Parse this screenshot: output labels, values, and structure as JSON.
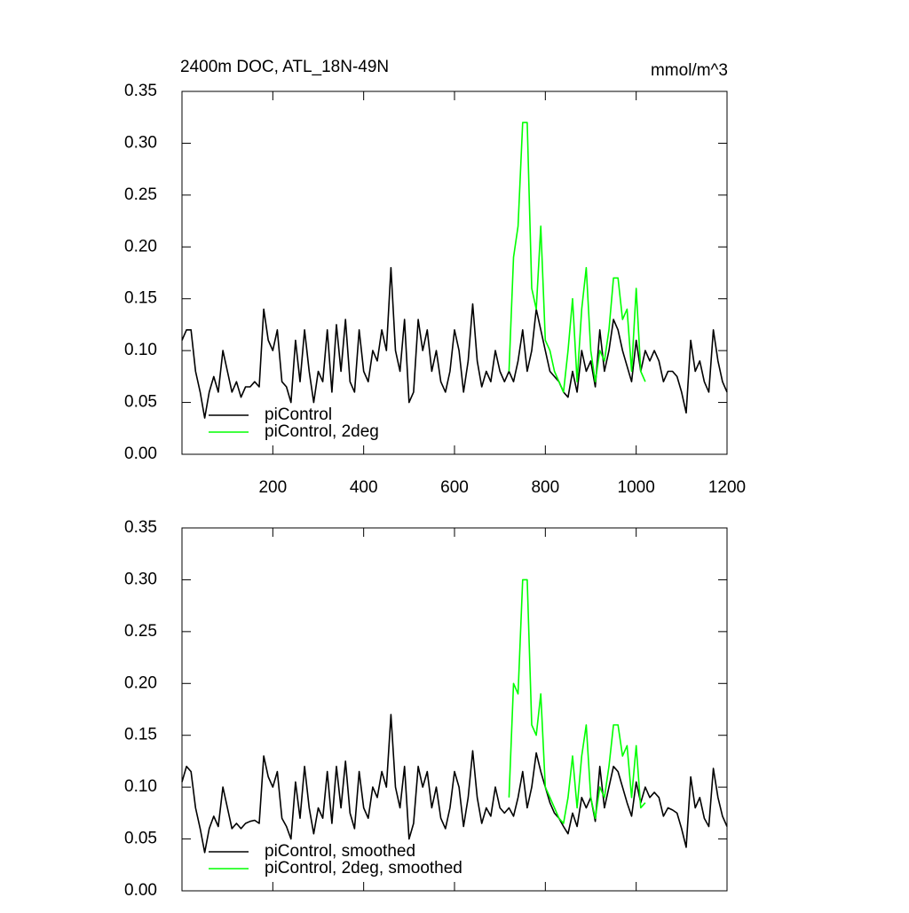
{
  "chart_data": [
    {
      "type": "line",
      "title": "2400m DOC, ATL_18N-49N",
      "units": "mmol/m^3",
      "xlim": [
        0,
        1200
      ],
      "xticks": [
        200,
        400,
        600,
        800,
        1000,
        1200
      ],
      "ylim": [
        0,
        0.35
      ],
      "yticks": [
        {
          "value": 0,
          "label": "0.00"
        },
        {
          "value": 0.05,
          "label": "0.05"
        },
        {
          "value": 0.1,
          "label": "0.10"
        },
        {
          "value": 0.15,
          "label": "0.15"
        },
        {
          "value": 0.2,
          "label": "0.20"
        },
        {
          "value": 0.25,
          "label": "0.25"
        },
        {
          "value": 0.3,
          "label": "0.30"
        },
        {
          "value": 0.35,
          "label": "0.35"
        }
      ],
      "legend": "lower left",
      "series": [
        {
          "name": "piControl",
          "color": "#000000",
          "x": [
            0,
            10,
            20,
            30,
            40,
            50,
            60,
            70,
            80,
            90,
            100,
            110,
            120,
            130,
            140,
            150,
            160,
            170,
            180,
            190,
            200,
            210,
            220,
            230,
            240,
            250,
            260,
            270,
            280,
            290,
            300,
            310,
            320,
            330,
            340,
            350,
            360,
            370,
            380,
            390,
            400,
            410,
            420,
            430,
            440,
            450,
            460,
            470,
            480,
            490,
            500,
            510,
            520,
            530,
            540,
            550,
            560,
            570,
            580,
            590,
            600,
            610,
            620,
            630,
            640,
            650,
            660,
            670,
            680,
            690,
            700,
            710,
            720,
            730,
            740,
            750,
            760,
            770,
            780,
            790,
            800,
            810,
            820,
            830,
            840,
            850,
            860,
            870,
            880,
            890,
            900,
            910,
            920,
            930,
            940,
            950,
            960,
            970,
            980,
            990,
            1000,
            1010,
            1020,
            1030,
            1040,
            1050,
            1060,
            1070,
            1080,
            1090,
            1100,
            1110,
            1120,
            1130,
            1140,
            1150,
            1160,
            1170,
            1180,
            1190,
            1200
          ],
          "values": [
            0.11,
            0.12,
            0.12,
            0.08,
            0.06,
            0.035,
            0.06,
            0.075,
            0.06,
            0.1,
            0.08,
            0.06,
            0.07,
            0.055,
            0.065,
            0.065,
            0.07,
            0.065,
            0.14,
            0.11,
            0.1,
            0.12,
            0.07,
            0.065,
            0.05,
            0.11,
            0.07,
            0.12,
            0.08,
            0.05,
            0.08,
            0.07,
            0.12,
            0.06,
            0.125,
            0.08,
            0.13,
            0.07,
            0.06,
            0.12,
            0.08,
            0.07,
            0.1,
            0.09,
            0.12,
            0.1,
            0.18,
            0.1,
            0.08,
            0.13,
            0.05,
            0.06,
            0.13,
            0.1,
            0.12,
            0.08,
            0.1,
            0.07,
            0.06,
            0.08,
            0.12,
            0.1,
            0.06,
            0.09,
            0.145,
            0.09,
            0.065,
            0.08,
            0.07,
            0.1,
            0.08,
            0.07,
            0.08,
            0.07,
            0.09,
            0.12,
            0.08,
            0.1,
            0.14,
            0.12,
            0.1,
            0.08,
            0.075,
            0.07,
            0.06,
            0.055,
            0.08,
            0.06,
            0.1,
            0.08,
            0.09,
            0.065,
            0.12,
            0.08,
            0.1,
            0.13,
            0.12,
            0.1,
            0.085,
            0.07,
            0.11,
            0.08,
            0.1,
            0.09,
            0.1,
            0.09,
            0.07,
            0.08,
            0.08,
            0.075,
            0.06,
            0.04,
            0.11,
            0.08,
            0.09,
            0.07,
            0.06,
            0.12,
            0.09,
            0.07,
            0.06
          ]
        },
        {
          "name": "piControl, 2deg",
          "color": "#00ff00",
          "x": [
            720,
            730,
            740,
            750,
            760,
            770,
            780,
            790,
            800,
            810,
            820,
            830,
            840,
            850,
            860,
            870,
            880,
            890,
            900,
            910,
            920,
            930,
            940,
            950,
            960,
            970,
            980,
            990,
            1000,
            1010,
            1020
          ],
          "values": [
            0.08,
            0.19,
            0.22,
            0.32,
            0.32,
            0.16,
            0.14,
            0.22,
            0.11,
            0.1,
            0.08,
            0.07,
            0.06,
            0.1,
            0.15,
            0.07,
            0.14,
            0.18,
            0.1,
            0.07,
            0.1,
            0.09,
            0.12,
            0.17,
            0.17,
            0.13,
            0.14,
            0.08,
            0.16,
            0.08,
            0.07
          ]
        }
      ]
    },
    {
      "type": "line",
      "xlim": [
        0,
        1200
      ],
      "xticks": [
        200,
        400,
        600,
        800,
        1000,
        1200
      ],
      "ylim": [
        0,
        0.35
      ],
      "yticks": [
        {
          "value": 0,
          "label": "0.00"
        },
        {
          "value": 0.05,
          "label": "0.05"
        },
        {
          "value": 0.1,
          "label": "0.10"
        },
        {
          "value": 0.15,
          "label": "0.15"
        },
        {
          "value": 0.2,
          "label": "0.20"
        },
        {
          "value": 0.25,
          "label": "0.25"
        },
        {
          "value": 0.3,
          "label": "0.30"
        },
        {
          "value": 0.35,
          "label": "0.35"
        }
      ],
      "legend": "lower left",
      "series": [
        {
          "name": "piControl, smoothed",
          "color": "#000000",
          "x": [
            0,
            10,
            20,
            30,
            40,
            50,
            60,
            70,
            80,
            90,
            100,
            110,
            120,
            130,
            140,
            150,
            160,
            170,
            180,
            190,
            200,
            210,
            220,
            230,
            240,
            250,
            260,
            270,
            280,
            290,
            300,
            310,
            320,
            330,
            340,
            350,
            360,
            370,
            380,
            390,
            400,
            410,
            420,
            430,
            440,
            450,
            460,
            470,
            480,
            490,
            500,
            510,
            520,
            530,
            540,
            550,
            560,
            570,
            580,
            590,
            600,
            610,
            620,
            630,
            640,
            650,
            660,
            670,
            680,
            690,
            700,
            710,
            720,
            730,
            740,
            750,
            760,
            770,
            780,
            790,
            800,
            810,
            820,
            830,
            840,
            850,
            860,
            870,
            880,
            890,
            900,
            910,
            920,
            930,
            940,
            950,
            960,
            970,
            980,
            990,
            1000,
            1010,
            1020,
            1030,
            1040,
            1050,
            1060,
            1070,
            1080,
            1090,
            1100,
            1110,
            1120,
            1130,
            1140,
            1150,
            1160,
            1170,
            1180,
            1190,
            1200
          ],
          "values": [
            0.105,
            0.12,
            0.115,
            0.08,
            0.06,
            0.037,
            0.06,
            0.072,
            0.062,
            0.1,
            0.08,
            0.06,
            0.065,
            0.06,
            0.065,
            0.067,
            0.068,
            0.065,
            0.13,
            0.11,
            0.1,
            0.115,
            0.07,
            0.062,
            0.05,
            0.105,
            0.07,
            0.12,
            0.08,
            0.055,
            0.08,
            0.07,
            0.115,
            0.065,
            0.12,
            0.08,
            0.125,
            0.075,
            0.06,
            0.115,
            0.08,
            0.07,
            0.1,
            0.09,
            0.115,
            0.1,
            0.17,
            0.1,
            0.08,
            0.12,
            0.05,
            0.065,
            0.12,
            0.1,
            0.115,
            0.08,
            0.1,
            0.07,
            0.06,
            0.08,
            0.115,
            0.1,
            0.062,
            0.09,
            0.135,
            0.09,
            0.065,
            0.08,
            0.072,
            0.1,
            0.08,
            0.075,
            0.08,
            0.072,
            0.09,
            0.115,
            0.08,
            0.1,
            0.133,
            0.115,
            0.1,
            0.085,
            0.075,
            0.07,
            0.062,
            0.055,
            0.075,
            0.062,
            0.09,
            0.08,
            0.09,
            0.067,
            0.12,
            0.08,
            0.1,
            0.12,
            0.115,
            0.1,
            0.085,
            0.072,
            0.105,
            0.085,
            0.1,
            0.09,
            0.095,
            0.09,
            0.072,
            0.08,
            0.078,
            0.075,
            0.06,
            0.042,
            0.11,
            0.08,
            0.09,
            0.07,
            0.062,
            0.118,
            0.09,
            0.072,
            0.062
          ]
        },
        {
          "name": "piControl, 2deg, smoothed",
          "color": "#00ff00",
          "x": [
            720,
            730,
            740,
            750,
            760,
            770,
            780,
            790,
            800,
            810,
            820,
            830,
            840,
            850,
            860,
            870,
            880,
            890,
            900,
            910,
            920,
            930,
            940,
            950,
            960,
            970,
            980,
            990,
            1000,
            1010,
            1020
          ],
          "values": [
            0.09,
            0.2,
            0.19,
            0.3,
            0.3,
            0.16,
            0.15,
            0.19,
            0.1,
            0.09,
            0.08,
            0.07,
            0.065,
            0.09,
            0.13,
            0.08,
            0.13,
            0.16,
            0.09,
            0.07,
            0.1,
            0.09,
            0.12,
            0.16,
            0.16,
            0.13,
            0.14,
            0.09,
            0.14,
            0.08,
            0.085
          ]
        }
      ]
    }
  ]
}
